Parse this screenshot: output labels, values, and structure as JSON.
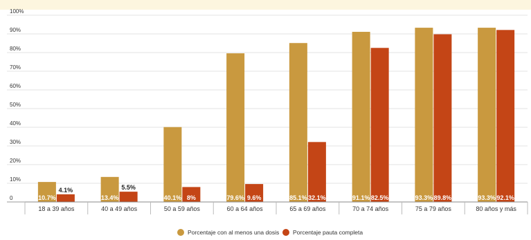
{
  "chart_data": {
    "type": "bar",
    "title": "",
    "xlabel": "",
    "ylabel": "",
    "ylim": [
      0,
      100
    ],
    "yticks": [
      "0",
      "10%",
      "20%",
      "30%",
      "40%",
      "50%",
      "60%",
      "70%",
      "80%",
      "90%",
      "100%"
    ],
    "categories": [
      "18 a 39 años",
      "40 a 49 años",
      "50 a 59 años",
      "60 a 64 años",
      "65 a 69 años",
      "70 a 74 años",
      "75 a 79 años",
      "80 años y más"
    ],
    "series": [
      {
        "name": "Porcentaje con al menos una dosis",
        "color": "#c9993f",
        "values": [
          10.7,
          13.4,
          40.1,
          79.6,
          85.1,
          91.1,
          93.3,
          93.3
        ],
        "labels": [
          "10.7%",
          "13.4%",
          "40.1%",
          "79.6%",
          "85.1%",
          "91.1%",
          "93.3%",
          "93.3%"
        ]
      },
      {
        "name": "Porcentaje pauta completa",
        "color": "#c44516",
        "values": [
          4.1,
          5.5,
          8,
          9.6,
          32.1,
          82.5,
          89.8,
          92.1
        ],
        "labels": [
          "4.1%",
          "5.5%",
          "8%",
          "9.6%",
          "32.1%",
          "82.5%",
          "89.8%",
          "92.1%"
        ]
      }
    ],
    "grid": true,
    "legend_position": "bottom-center"
  }
}
